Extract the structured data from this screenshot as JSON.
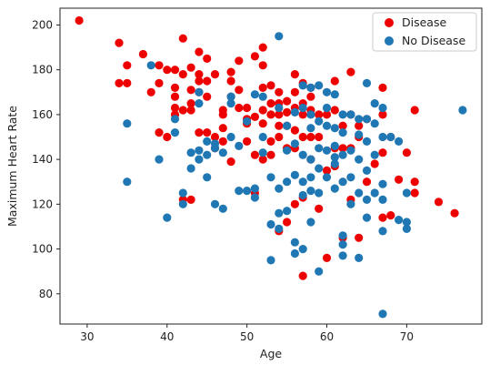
{
  "chart_data": {
    "type": "scatter",
    "xlabel": "Age",
    "ylabel": "Maximum Heart Rate",
    "xlim": [
      26.6,
      79.4
    ],
    "ylim": [
      66.5,
      207.5
    ],
    "xticks": [
      30,
      40,
      50,
      60,
      70
    ],
    "yticks": [
      80,
      100,
      120,
      140,
      160,
      180,
      200
    ],
    "grid": false,
    "legend_position": "top-right",
    "series": [
      {
        "name": "Disease",
        "color": "#ee0000",
        "points": [
          [
            29,
            202
          ],
          [
            34,
            192
          ],
          [
            34,
            174
          ],
          [
            35,
            182
          ],
          [
            35,
            174
          ],
          [
            37,
            187
          ],
          [
            38,
            170
          ],
          [
            39,
            182
          ],
          [
            39,
            174
          ],
          [
            40,
            180
          ],
          [
            41,
            180
          ],
          [
            41,
            168
          ],
          [
            41,
            160
          ],
          [
            41,
            172
          ],
          [
            41,
            163
          ],
          [
            42,
            194
          ],
          [
            42,
            162
          ],
          [
            42,
            178
          ],
          [
            43,
            181
          ],
          [
            43,
            171
          ],
          [
            43,
            162
          ],
          [
            43,
            165
          ],
          [
            44,
            178
          ],
          [
            44,
            175
          ],
          [
            44,
            188
          ],
          [
            44,
            170
          ],
          [
            45,
            185
          ],
          [
            45,
            175
          ],
          [
            45,
            168
          ],
          [
            45,
            152
          ],
          [
            46,
            178
          ],
          [
            46,
            145
          ],
          [
            46,
            150
          ],
          [
            47,
            162
          ],
          [
            47,
            160
          ],
          [
            47,
            148
          ],
          [
            48,
            179
          ],
          [
            48,
            168
          ],
          [
            48,
            175
          ],
          [
            48,
            139
          ],
          [
            49,
            184
          ],
          [
            49,
            163
          ],
          [
            49,
            171
          ],
          [
            50,
            163
          ],
          [
            50,
            158
          ],
          [
            50,
            148
          ],
          [
            51,
            186
          ],
          [
            51,
            159
          ],
          [
            51,
            142
          ],
          [
            51,
            125
          ],
          [
            52,
            190
          ],
          [
            52,
            182
          ],
          [
            52,
            162
          ],
          [
            52,
            172
          ],
          [
            52,
            156
          ],
          [
            52,
            140
          ],
          [
            53,
            173
          ],
          [
            53,
            165
          ],
          [
            53,
            160
          ],
          [
            53,
            148
          ],
          [
            53,
            142
          ],
          [
            54,
            170
          ],
          [
            54,
            165
          ],
          [
            54,
            160
          ],
          [
            54,
            155
          ],
          [
            54,
            150
          ],
          [
            54,
            108
          ],
          [
            55,
            166
          ],
          [
            55,
            161
          ],
          [
            55,
            155
          ],
          [
            55,
            145
          ],
          [
            55,
            112
          ],
          [
            56,
            178
          ],
          [
            56,
            170
          ],
          [
            56,
            163
          ],
          [
            56,
            153
          ],
          [
            56,
            120
          ],
          [
            57,
            174
          ],
          [
            57,
            165
          ],
          [
            57,
            160
          ],
          [
            57,
            150
          ],
          [
            57,
            123
          ],
          [
            58,
            172
          ],
          [
            58,
            168
          ],
          [
            58,
            162
          ],
          [
            58,
            150
          ],
          [
            58,
            140
          ],
          [
            59,
            160
          ],
          [
            59,
            150
          ],
          [
            59,
            118
          ],
          [
            60,
            160
          ],
          [
            60,
            96
          ],
          [
            61,
            175
          ],
          [
            61,
            162
          ],
          [
            61,
            145
          ],
          [
            61,
            137
          ],
          [
            62,
            155
          ],
          [
            62,
            145
          ],
          [
            63,
            179
          ],
          [
            63,
            160
          ],
          [
            63,
            145
          ],
          [
            63,
            122
          ],
          [
            64,
            155
          ],
          [
            64,
            105
          ],
          [
            64,
            150
          ],
          [
            65,
            158
          ],
          [
            65,
            130
          ],
          [
            66,
            138
          ],
          [
            67,
            172
          ],
          [
            67,
            160
          ],
          [
            67,
            143
          ],
          [
            67,
            114
          ],
          [
            68,
            115
          ],
          [
            68,
            150
          ],
          [
            69,
            131
          ],
          [
            70,
            143
          ],
          [
            71,
            162
          ],
          [
            71,
            130
          ],
          [
            71,
            125
          ],
          [
            74,
            121
          ],
          [
            76,
            116
          ],
          [
            40,
            150
          ],
          [
            39,
            152
          ],
          [
            43,
            122
          ],
          [
            42,
            122
          ],
          [
            44,
            152
          ],
          [
            47,
            154
          ],
          [
            50,
            156
          ],
          [
            56,
            145
          ],
          [
            60,
            135
          ],
          [
            62,
            105
          ],
          [
            57,
            88
          ]
        ]
      },
      {
        "name": "No Disease",
        "color": "#1f77b4",
        "points": [
          [
            35,
            156
          ],
          [
            35,
            130
          ],
          [
            38,
            182
          ],
          [
            39,
            140
          ],
          [
            40,
            114
          ],
          [
            41,
            152
          ],
          [
            41,
            158
          ],
          [
            42,
            120
          ],
          [
            42,
            125
          ],
          [
            43,
            136
          ],
          [
            43,
            143
          ],
          [
            44,
            170
          ],
          [
            44,
            165
          ],
          [
            44,
            140
          ],
          [
            44,
            144
          ],
          [
            45,
            148
          ],
          [
            45,
            132
          ],
          [
            45,
            142
          ],
          [
            46,
            145
          ],
          [
            46,
            120
          ],
          [
            46,
            147
          ],
          [
            47,
            143
          ],
          [
            47,
            118
          ],
          [
            48,
            165
          ],
          [
            48,
            150
          ],
          [
            48,
            168
          ],
          [
            49,
            146
          ],
          [
            49,
            126
          ],
          [
            50,
            157
          ],
          [
            50,
            126
          ],
          [
            51,
            169
          ],
          [
            51,
            123
          ],
          [
            51,
            127
          ],
          [
            52,
            168
          ],
          [
            52,
            150
          ],
          [
            52,
            143
          ],
          [
            53,
            111
          ],
          [
            53,
            95
          ],
          [
            53,
            132
          ],
          [
            54,
            195
          ],
          [
            54,
            163
          ],
          [
            54,
            127
          ],
          [
            54,
            116
          ],
          [
            54,
            109
          ],
          [
            55,
            155
          ],
          [
            55,
            130
          ],
          [
            55,
            117
          ],
          [
            55,
            144
          ],
          [
            56,
            161
          ],
          [
            56,
            147
          ],
          [
            56,
            133
          ],
          [
            56,
            103
          ],
          [
            56,
            98
          ],
          [
            57,
            173
          ],
          [
            57,
            163
          ],
          [
            57,
            142
          ],
          [
            57,
            130
          ],
          [
            57,
            124
          ],
          [
            57,
            100
          ],
          [
            58,
            172
          ],
          [
            58,
            160
          ],
          [
            58,
            154
          ],
          [
            58,
            140
          ],
          [
            58,
            126
          ],
          [
            58,
            112
          ],
          [
            58,
            132
          ],
          [
            59,
            173
          ],
          [
            59,
            157
          ],
          [
            59,
            145
          ],
          [
            59,
            136
          ],
          [
            59,
            125
          ],
          [
            59,
            90
          ],
          [
            60,
            170
          ],
          [
            60,
            163
          ],
          [
            60,
            155
          ],
          [
            60,
            144
          ],
          [
            60,
            132
          ],
          [
            61,
            169
          ],
          [
            61,
            154
          ],
          [
            61,
            146
          ],
          [
            61,
            141
          ],
          [
            61,
            138
          ],
          [
            61,
            127
          ],
          [
            62,
            160
          ],
          [
            62,
            152
          ],
          [
            62,
            142
          ],
          [
            62,
            130
          ],
          [
            62,
            106
          ],
          [
            62,
            102
          ],
          [
            62,
            97
          ],
          [
            63,
            160
          ],
          [
            63,
            144
          ],
          [
            63,
            132
          ],
          [
            63,
            120
          ],
          [
            64,
            158
          ],
          [
            64,
            151
          ],
          [
            64,
            140
          ],
          [
            64,
            125
          ],
          [
            64,
            96
          ],
          [
            65,
            174
          ],
          [
            65,
            158
          ],
          [
            65,
            148
          ],
          [
            65,
            135
          ],
          [
            65,
            122
          ],
          [
            65,
            114
          ],
          [
            66,
            165
          ],
          [
            66,
            156
          ],
          [
            66,
            142
          ],
          [
            66,
            125
          ],
          [
            67,
            163
          ],
          [
            67,
            150
          ],
          [
            67,
            129
          ],
          [
            67,
            122
          ],
          [
            67,
            108
          ],
          [
            67,
            71
          ],
          [
            68,
            150
          ],
          [
            69,
            113
          ],
          [
            69,
            148
          ],
          [
            70,
            125
          ],
          [
            70,
            112
          ],
          [
            70,
            109
          ],
          [
            77,
            162
          ]
        ]
      }
    ]
  }
}
